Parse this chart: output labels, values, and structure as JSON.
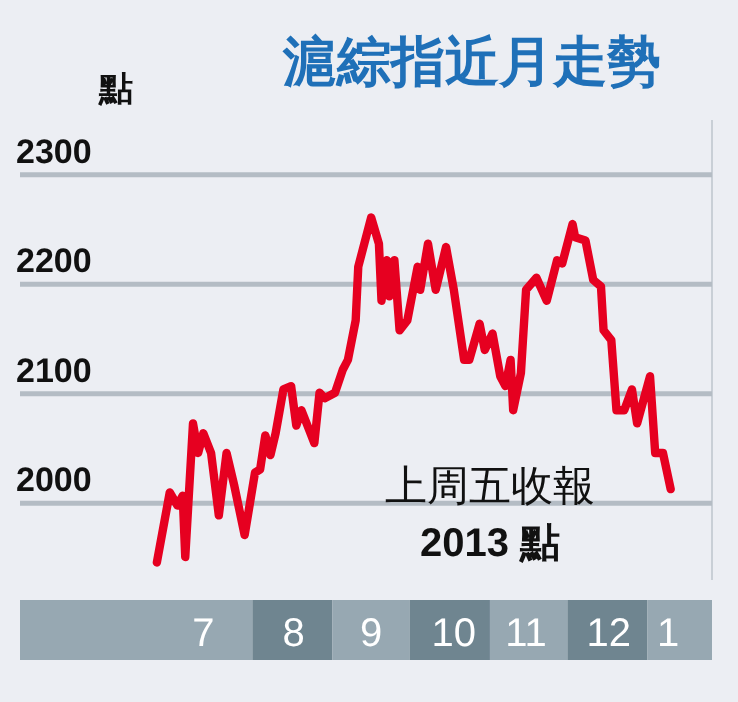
{
  "chart_data": {
    "type": "line",
    "title": "滬綜指近月走勢",
    "ylabel": "點",
    "x": [
      "2013-06-25",
      "2013-06-30",
      "2013-07-03",
      "2013-07-05",
      "2013-07-06",
      "2013-07-09",
      "2013-07-11",
      "2013-07-13",
      "2013-07-16",
      "2013-07-19",
      "2013-07-22",
      "2013-07-25",
      "2013-07-29",
      "2013-08-02",
      "2013-08-04",
      "2013-08-06",
      "2013-08-08",
      "2013-08-10",
      "2013-08-13",
      "2013-08-16",
      "2013-08-18",
      "2013-08-20",
      "2013-08-23",
      "2013-08-25",
      "2013-08-27",
      "2013-08-29",
      "2013-09-02",
      "2013-09-05",
      "2013-09-07",
      "2013-09-10",
      "2013-09-11",
      "2013-09-16",
      "2013-09-19",
      "2013-09-20",
      "2013-09-22",
      "2013-09-23",
      "2013-09-25",
      "2013-09-27",
      "2013-09-30",
      "2013-10-04",
      "2013-10-05",
      "2013-10-08",
      "2013-10-11",
      "2013-10-15",
      "2013-10-18",
      "2013-10-22",
      "2013-10-24",
      "2013-10-28",
      "2013-10-30",
      "2013-11-02",
      "2013-11-05",
      "2013-11-07",
      "2013-11-09",
      "2013-11-10",
      "2013-11-13",
      "2013-11-15",
      "2013-11-19",
      "2013-11-23",
      "2013-11-27",
      "2013-11-29",
      "2013-12-03",
      "2013-12-04",
      "2013-12-08",
      "2013-12-11",
      "2013-12-14",
      "2013-12-15",
      "2013-12-18",
      "2013-12-20",
      "2013-12-23",
      "2013-12-26",
      "2013-12-28",
      "2014-01-02",
      "2014-01-04",
      "2014-01-07",
      "2014-01-10"
    ],
    "series": [
      {
        "color": "#e60020",
        "values": [
          1946,
          2010,
          1998,
          2007,
          1951,
          2073,
          2046,
          2064,
          2046,
          1989,
          2046,
          2016,
          1971,
          2028,
          2031,
          2062,
          2044,
          2064,
          2104,
          2107,
          2071,
          2085,
          2067,
          2055,
          2101,
          2096,
          2101,
          2122,
          2131,
          2167,
          2216,
          2261,
          2237,
          2185,
          2222,
          2189,
          2222,
          2158,
          2167,
          2216,
          2195,
          2237,
          2195,
          2234,
          2195,
          2131,
          2131,
          2164,
          2140,
          2155,
          2116,
          2107,
          2131,
          2085,
          2119,
          2195,
          2206,
          2185,
          2222,
          2219,
          2255,
          2243,
          2240,
          2204,
          2198,
          2158,
          2149,
          2085,
          2085,
          2104,
          2073,
          2116,
          2046,
          2046,
          2013
        ]
      }
    ],
    "xlim": [
      "2013-05-03",
      "2014-01-26"
    ],
    "xticks": [
      {
        "value": "2013-07-13",
        "label": "7"
      },
      {
        "value": "2013-08-17",
        "label": "8"
      },
      {
        "value": "2013-09-16",
        "label": "9"
      },
      {
        "value": "2013-10-18",
        "label": "10"
      },
      {
        "value": "2013-11-15",
        "label": "11"
      },
      {
        "value": "2013-12-17",
        "label": "12"
      },
      {
        "value": "2014-01-09",
        "label": "1"
      }
    ],
    "ylim": [
      1930,
      2350
    ],
    "yticks": [
      2000,
      2100,
      2200,
      2300
    ],
    "grid": "y",
    "marker": "none",
    "line_style": "solid",
    "annotations": [
      "上周五收報",
      "2013 點"
    ]
  }
}
